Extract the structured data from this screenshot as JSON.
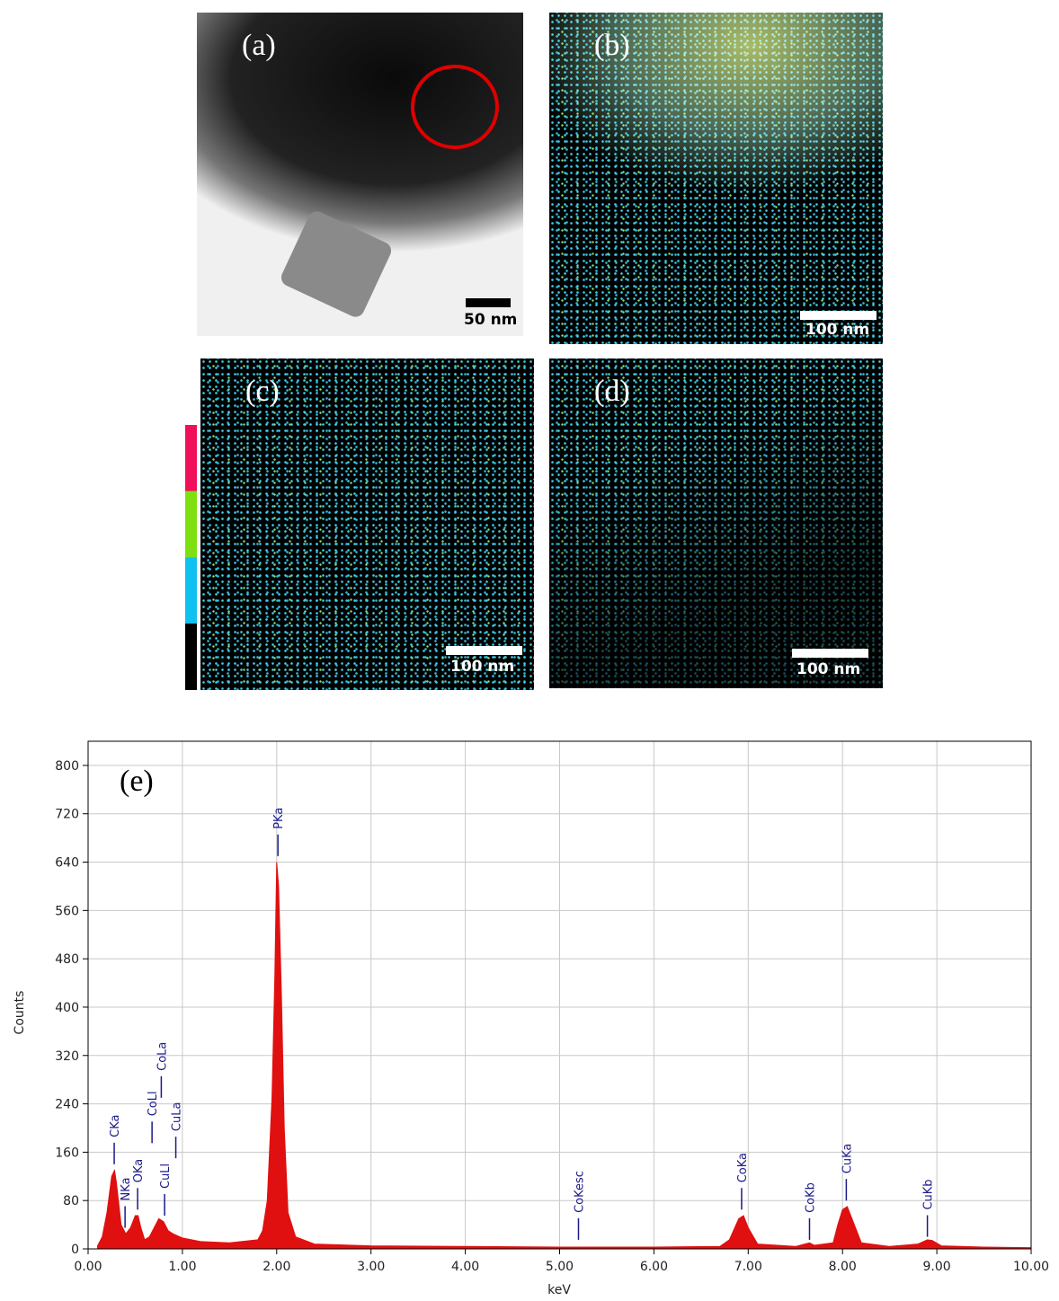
{
  "panels": [
    {
      "label": "(a)",
      "scale_bar": "50 nm"
    },
    {
      "label": "(b)",
      "scale_bar": "100 nm"
    },
    {
      "label": "(c)",
      "scale_bar": "100 nm"
    },
    {
      "label": "(d)",
      "scale_bar": "100 nm"
    }
  ],
  "chart_data": {
    "type": "area",
    "annotation": "(e)",
    "x_label": "keV",
    "y_label": "Counts",
    "color": "#e01010",
    "grid": true,
    "xlim": [
      0,
      10
    ],
    "ylim": [
      0,
      840
    ],
    "xticks": [
      {
        "value": 0,
        "label": "0.00"
      },
      {
        "value": 1,
        "label": "1.00"
      },
      {
        "value": 2,
        "label": "2.00"
      },
      {
        "value": 3,
        "label": "3.00"
      },
      {
        "value": 4,
        "label": "4.00"
      },
      {
        "value": 5,
        "label": "5.00"
      },
      {
        "value": 6,
        "label": "6.00"
      },
      {
        "value": 7,
        "label": "7.00"
      },
      {
        "value": 8,
        "label": "8.00"
      },
      {
        "value": 9,
        "label": "9.00"
      },
      {
        "value": 10,
        "label": "10.00"
      }
    ],
    "yticks": [
      0,
      80,
      160,
      240,
      320,
      400,
      480,
      560,
      640,
      720,
      800
    ],
    "x": [
      0.1,
      0.15,
      0.2,
      0.25,
      0.28,
      0.3,
      0.35,
      0.4,
      0.45,
      0.5,
      0.53,
      0.56,
      0.6,
      0.65,
      0.7,
      0.75,
      0.8,
      0.85,
      0.9,
      1.0,
      1.2,
      1.5,
      1.8,
      1.85,
      1.9,
      1.95,
      1.98,
      2.0,
      2.02,
      2.05,
      2.08,
      2.12,
      2.2,
      2.4,
      3.0,
      4.0,
      5.0,
      6.0,
      6.7,
      6.8,
      6.9,
      6.95,
      7.0,
      7.1,
      7.5,
      7.6,
      7.65,
      7.7,
      7.9,
      7.95,
      8.0,
      8.05,
      8.1,
      8.2,
      8.5,
      8.8,
      8.9,
      8.95,
      9.05,
      9.5,
      10.0
    ],
    "values": [
      5,
      20,
      60,
      120,
      130,
      110,
      40,
      25,
      35,
      55,
      55,
      35,
      15,
      20,
      35,
      50,
      45,
      30,
      25,
      18,
      12,
      10,
      15,
      30,
      80,
      250,
      450,
      640,
      600,
      420,
      200,
      60,
      20,
      8,
      5,
      4,
      3,
      3,
      4,
      15,
      50,
      55,
      35,
      8,
      4,
      8,
      10,
      6,
      10,
      40,
      65,
      70,
      50,
      10,
      4,
      8,
      15,
      14,
      5,
      3,
      2
    ],
    "annotations": [
      {
        "label": "CKa",
        "x": 0.277,
        "y": 140
      },
      {
        "label": "NKa",
        "x": 0.392,
        "y": 35
      },
      {
        "label": "OKa",
        "x": 0.525,
        "y": 65
      },
      {
        "label": "CoLl",
        "x": 0.678,
        "y": 175
      },
      {
        "label": "CoLa",
        "x": 0.776,
        "y": 250
      },
      {
        "label": "CuLl",
        "x": 0.811,
        "y": 55
      },
      {
        "label": "CuLa",
        "x": 0.93,
        "y": 150
      },
      {
        "label": "PKa",
        "x": 2.013,
        "y": 650
      },
      {
        "label": "CoKesc",
        "x": 5.2,
        "y": 15
      },
      {
        "label": "CoKa",
        "x": 6.93,
        "y": 65
      },
      {
        "label": "CoKb",
        "x": 7.65,
        "y": 15
      },
      {
        "label": "CuKa",
        "x": 8.04,
        "y": 80
      },
      {
        "label": "CuKb",
        "x": 8.9,
        "y": 20
      }
    ]
  }
}
